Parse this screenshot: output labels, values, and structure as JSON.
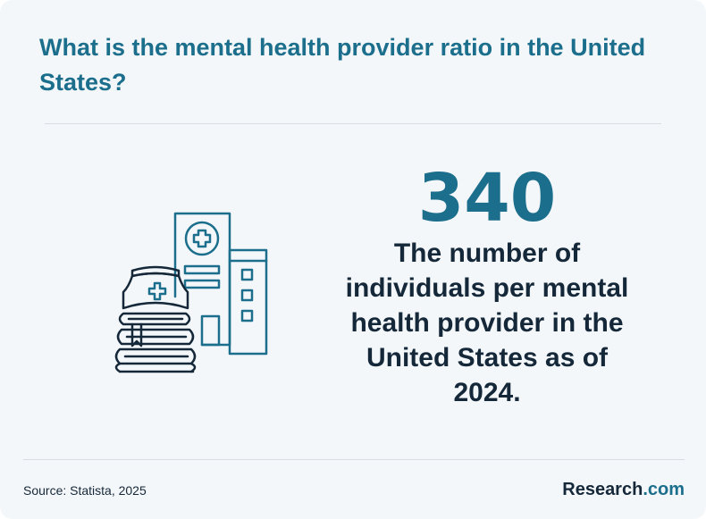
{
  "header": {
    "title": "What is the mental health provider ratio in the United States?"
  },
  "stat": {
    "value": "340",
    "description": "The number of individuals per mental health provider in the United States as of 2024."
  },
  "illustration": {
    "icon": "hospital-and-nurse-cap-on-books-icon",
    "stroke_color": "#15283a",
    "accent_color": "#1b6e8c"
  },
  "footer": {
    "source": "Source: Statista, 2025",
    "brand_name": "Research",
    "brand_suffix": ".com"
  },
  "colors": {
    "background": "#f4f7f9",
    "accent": "#1b6e8c",
    "text": "#15283a",
    "divider": "#d7dfe4"
  }
}
